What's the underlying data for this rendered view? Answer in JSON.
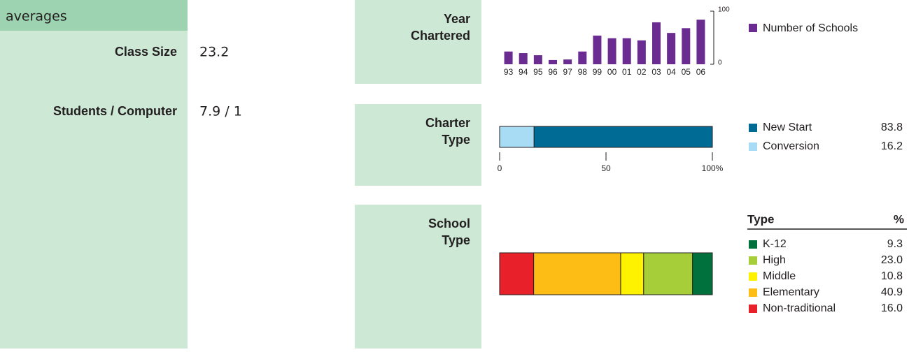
{
  "averages": {
    "title": "averages",
    "rows": [
      {
        "label": "Class Size",
        "value": "23.2"
      },
      {
        "label": "Students / Computer",
        "value": "7.9 / 1"
      }
    ]
  },
  "chart_data": [
    {
      "type": "bar",
      "title": [
        "Year",
        "Chartered"
      ],
      "categories": [
        "93",
        "94",
        "95",
        "96",
        "97",
        "98",
        "99",
        "00",
        "01",
        "02",
        "03",
        "04",
        "05",
        "06"
      ],
      "series": [
        {
          "name": "Number of Schools",
          "color": "#6a2c91",
          "values": [
            24,
            21,
            17,
            8,
            9,
            24,
            54,
            49,
            49,
            45,
            79,
            59,
            68,
            84
          ]
        }
      ],
      "ylim": [
        0,
        100
      ],
      "yticks": [
        0,
        100
      ]
    },
    {
      "type": "stacked-bar",
      "title": [
        "Charter",
        "Type"
      ],
      "series": [
        {
          "name": "New Start",
          "color": "#006b94",
          "values": [
            83.8
          ]
        },
        {
          "name": "Conversion",
          "color": "#a8dcf4",
          "values": [
            16.2
          ]
        }
      ],
      "xlim": [
        0,
        100
      ],
      "xticks": [
        0,
        50,
        {
          "value": 100,
          "label": "100%"
        }
      ]
    },
    {
      "type": "stacked-bar",
      "title": [
        "School",
        "Type"
      ],
      "legend_header": [
        "Type",
        "%"
      ],
      "series": [
        {
          "name": "K-12",
          "color": "#00703c",
          "values": [
            9.3
          ],
          "value_labels": [
            "9.3"
          ]
        },
        {
          "name": "High",
          "color": "#a6ce39",
          "values": [
            23.0
          ],
          "value_labels": [
            "23.0"
          ]
        },
        {
          "name": "Middle",
          "color": "#fff200",
          "values": [
            10.8
          ],
          "value_labels": [
            "10.8"
          ]
        },
        {
          "name": "Elementary",
          "color": "#fdbd14",
          "values": [
            40.9
          ],
          "value_labels": [
            "40.9"
          ]
        },
        {
          "name": "Non-traditional",
          "color": "#e8202a",
          "values": [
            16.0
          ],
          "value_labels": [
            "16.0"
          ]
        }
      ]
    }
  ]
}
